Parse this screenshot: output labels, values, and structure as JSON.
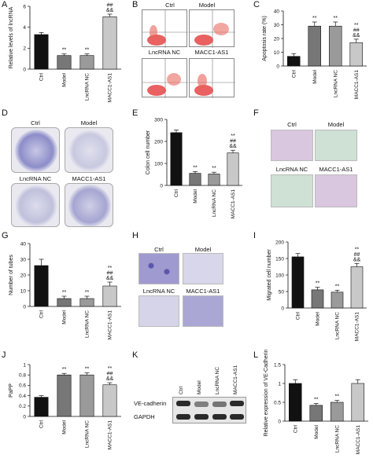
{
  "letters": {
    "a": "A",
    "b": "B",
    "c": "C",
    "d": "D",
    "e": "E",
    "f": "F",
    "g": "G",
    "h": "H",
    "i": "I",
    "j": "J",
    "k": "K",
    "l": "L"
  },
  "groups": [
    "Ctrl",
    "Model",
    "LncRNA NC",
    "MACC1-AS1"
  ],
  "flow": {
    "ctrl": "Ctrl",
    "model": "Model",
    "nc": "LncRNA NC",
    "macc": "MACC1-AS1"
  },
  "colony": {
    "ctrl": "Ctrl",
    "model": "Model",
    "nc": "LncRNA NC",
    "macc": "MACC1-AS1"
  },
  "micro_f": {
    "ctrl": "Ctrl",
    "model": "Model",
    "nc": "LncRNA NC",
    "macc": "MACC1-AS1"
  },
  "micro_h": {
    "ctrl": "Ctrl",
    "model": "Model",
    "nc": "LncRNA NC",
    "macc": "MACC1-AS1"
  },
  "western": {
    "lanes": [
      "Ctrl",
      "Model",
      "LncRNA NC",
      "MACC1-AS1"
    ],
    "rows": [
      "VE-cadherin",
      "GAPDH"
    ]
  },
  "colors": {
    "ctrl": "#111111",
    "model": "#777777",
    "nc": "#9a9a9a",
    "macc": "#c8c8c8"
  },
  "chart_data": [
    {
      "id": "A",
      "type": "bar",
      "categories": [
        "Ctrl",
        "Model",
        "LncRNA NC",
        "MACC1-AS1"
      ],
      "values": [
        3.3,
        1.3,
        1.3,
        5.0
      ],
      "errors": [
        0.2,
        0.15,
        0.15,
        0.25
      ],
      "ylabel": "Relative levels of lncRNA",
      "ylim": [
        0,
        6
      ],
      "yticks": [
        0,
        2,
        4,
        6
      ],
      "sig": [
        "",
        "**",
        "**",
        "**\n##\n&&"
      ]
    },
    {
      "id": "C",
      "type": "bar",
      "categories": [
        "Ctrl",
        "Model",
        "LncRNA NC",
        "MACC1-AS1"
      ],
      "values": [
        7,
        29,
        29,
        17
      ],
      "errors": [
        2,
        3,
        3,
        2.5
      ],
      "ylabel": "Apoptosis rate (%)",
      "ylim": [
        0,
        40
      ],
      "yticks": [
        0,
        10,
        20,
        30,
        40
      ],
      "sig": [
        "",
        "**",
        "**",
        "**\n##\n&&"
      ]
    },
    {
      "id": "E",
      "type": "bar",
      "categories": [
        "Ctrl",
        "Model",
        "LncRNA NC",
        "MACC1-AS1"
      ],
      "values": [
        240,
        55,
        52,
        148
      ],
      "errors": [
        12,
        8,
        8,
        12
      ],
      "ylabel": "Colon cell number",
      "ylim": [
        0,
        300
      ],
      "yticks": [
        0,
        100,
        200,
        300
      ],
      "sig": [
        "",
        "**",
        "**",
        "**\n##\n&&"
      ]
    },
    {
      "id": "G",
      "type": "bar",
      "categories": [
        "Ctrl",
        "Model",
        "LncRNA NC",
        "MACC1-AS1"
      ],
      "values": [
        26,
        5,
        5,
        13
      ],
      "errors": [
        4,
        1.5,
        1.5,
        2.5
      ],
      "ylabel": "Number of tubes",
      "ylim": [
        0,
        40
      ],
      "yticks": [
        0,
        10,
        20,
        30,
        40
      ],
      "sig": [
        "",
        "**",
        "**",
        "**\n##\n&&"
      ]
    },
    {
      "id": "I",
      "type": "bar",
      "categories": [
        "Ctrl",
        "Model",
        "LncRNA NC",
        "MACC1-AS1"
      ],
      "values": [
        155,
        55,
        48,
        125
      ],
      "errors": [
        10,
        8,
        6,
        10
      ],
      "ylabel": "Migrated cell number",
      "ylim": [
        0,
        200
      ],
      "yticks": [
        0,
        50,
        100,
        150,
        200
      ],
      "sig": [
        "",
        "**",
        "**",
        "**\n##\n&&"
      ]
    },
    {
      "id": "J",
      "type": "bar",
      "categories": [
        "Ctrl",
        "Model",
        "LncRNA NC",
        "MACC1-AS1"
      ],
      "values": [
        0.37,
        0.8,
        0.8,
        0.61
      ],
      "errors": [
        0.03,
        0.03,
        0.04,
        0.04
      ],
      "ylabel": "PaPP",
      "ylim": [
        0,
        1.0
      ],
      "yticks": [
        0,
        0.2,
        0.4,
        0.6,
        0.8,
        1.0
      ],
      "sig": [
        "",
        "**",
        "**",
        "**\n##\n&&"
      ]
    },
    {
      "id": "L",
      "type": "bar",
      "categories": [
        "Ctrl",
        "Model",
        "LncRNA NC",
        "MACC1-AS1"
      ],
      "values": [
        1.0,
        0.42,
        0.5,
        1.0
      ],
      "errors": [
        0.1,
        0.05,
        0.05,
        0.1
      ],
      "ylabel": "Relative expression of VE-Cadherin",
      "ylim": [
        0,
        1.5
      ],
      "yticks": [
        0,
        0.5,
        1.0,
        1.5
      ],
      "sig": [
        "",
        "**",
        "**",
        ""
      ]
    }
  ]
}
